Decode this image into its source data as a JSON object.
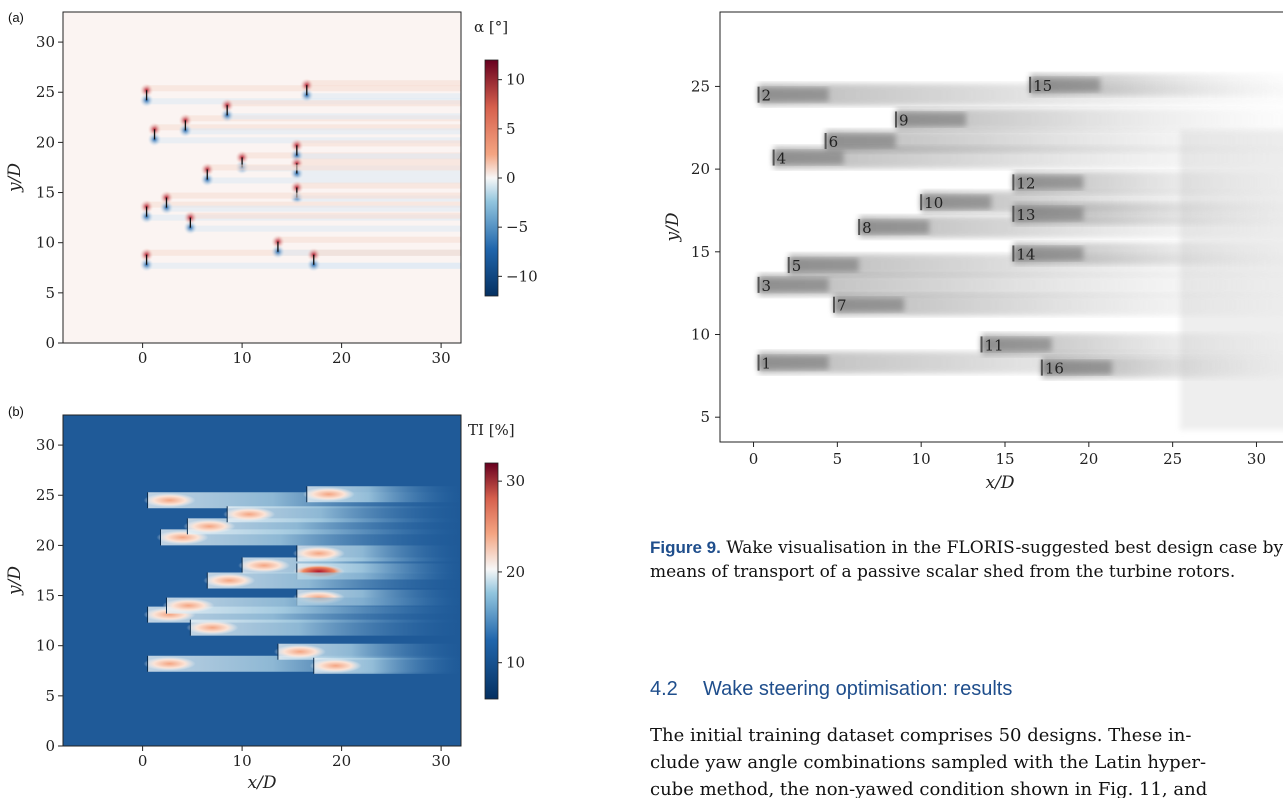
{
  "panel_a": {
    "letter": "(a)",
    "colorbar_label": "α [°]",
    "colorbar_ticks": [
      "10",
      "5",
      "0",
      "−5",
      "−10"
    ],
    "x_ticks": [
      "0",
      "10",
      "20",
      "30"
    ],
    "y_ticks": [
      "0",
      "5",
      "10",
      "15",
      "20",
      "25",
      "30"
    ],
    "ylabel": "y/D"
  },
  "panel_b": {
    "letter": "(b)",
    "colorbar_label": "TI [%]",
    "colorbar_ticks": [
      "30",
      "20",
      "10"
    ],
    "x_ticks": [
      "0",
      "10",
      "20",
      "30"
    ],
    "y_ticks": [
      "0",
      "5",
      "10",
      "15",
      "20",
      "25",
      "30"
    ],
    "xlabel": "x/D",
    "ylabel": "y/D"
  },
  "panel_c": {
    "x_ticks": [
      "0",
      "5",
      "10",
      "15",
      "20",
      "25",
      "30"
    ],
    "y_ticks": [
      "5",
      "10",
      "15",
      "20",
      "25"
    ],
    "xlabel": "x/D",
    "ylabel": "y/D",
    "turbine_labels": [
      "1",
      "2",
      "3",
      "4",
      "5",
      "6",
      "7",
      "8",
      "9",
      "10",
      "11",
      "12",
      "13",
      "14",
      "15",
      "16"
    ]
  },
  "chart_data": [
    {
      "type": "heatmap",
      "title": "",
      "xlabel": "",
      "ylabel": "y/D",
      "xlim": [
        -8,
        32
      ],
      "ylim": [
        0,
        33
      ],
      "colorbar": {
        "label": "α [°]",
        "range": [
          -12,
          12
        ],
        "colormap": "RdBu_r"
      },
      "turbines": [
        {
          "x": 0.4,
          "y": 24.7
        },
        {
          "x": 1.2,
          "y": 20.8
        },
        {
          "x": 4.3,
          "y": 21.7
        },
        {
          "x": 8.5,
          "y": 23.2
        },
        {
          "x": 16.5,
          "y": 25.2
        },
        {
          "x": 10.0,
          "y": 18.0
        },
        {
          "x": 15.5,
          "y": 19.2
        },
        {
          "x": 15.5,
          "y": 17.4
        },
        {
          "x": 6.5,
          "y": 16.8
        },
        {
          "x": 15.5,
          "y": 15.0
        },
        {
          "x": 0.4,
          "y": 13.1
        },
        {
          "x": 2.4,
          "y": 14.0
        },
        {
          "x": 4.8,
          "y": 12.0
        },
        {
          "x": 0.4,
          "y": 8.3
        },
        {
          "x": 13.6,
          "y": 9.6
        },
        {
          "x": 17.2,
          "y": 8.3
        }
      ]
    },
    {
      "type": "heatmap",
      "title": "",
      "xlabel": "x/D",
      "ylabel": "y/D",
      "xlim": [
        -8,
        32
      ],
      "ylim": [
        0,
        33
      ],
      "colorbar": {
        "label": "TI [%]",
        "range": [
          6,
          32
        ],
        "colormap": "RdBu_r"
      },
      "wakes": [
        {
          "x": 0.5,
          "y": 24.5
        },
        {
          "x": 1.8,
          "y": 20.8
        },
        {
          "x": 4.5,
          "y": 21.9
        },
        {
          "x": 8.5,
          "y": 23.1
        },
        {
          "x": 16.5,
          "y": 25.1
        },
        {
          "x": 10.0,
          "y": 18.0
        },
        {
          "x": 15.5,
          "y": 19.2
        },
        {
          "x": 15.5,
          "y": 17.4
        },
        {
          "x": 6.5,
          "y": 16.5
        },
        {
          "x": 15.5,
          "y": 14.8
        },
        {
          "x": 0.5,
          "y": 13.1
        },
        {
          "x": 2.4,
          "y": 14.0
        },
        {
          "x": 4.8,
          "y": 11.8
        },
        {
          "x": 0.5,
          "y": 8.2
        },
        {
          "x": 13.6,
          "y": 9.4
        },
        {
          "x": 17.2,
          "y": 8.0
        }
      ]
    },
    {
      "type": "heatmap",
      "title": "",
      "xlabel": "x/D",
      "ylabel": "y/D",
      "xlim": [
        -2,
        32
      ],
      "ylim": [
        3.5,
        29.5
      ],
      "turbines": [
        {
          "label": "1",
          "x": 0.3,
          "y": 8.3
        },
        {
          "label": "2",
          "x": 0.3,
          "y": 24.5
        },
        {
          "label": "3",
          "x": 0.3,
          "y": 13.0
        },
        {
          "label": "4",
          "x": 1.2,
          "y": 20.7
        },
        {
          "label": "5",
          "x": 2.1,
          "y": 14.2
        },
        {
          "label": "6",
          "x": 4.3,
          "y": 21.7
        },
        {
          "label": "7",
          "x": 4.8,
          "y": 11.8
        },
        {
          "label": "8",
          "x": 6.3,
          "y": 16.5
        },
        {
          "label": "9",
          "x": 8.5,
          "y": 23.0
        },
        {
          "label": "10",
          "x": 10.0,
          "y": 18.0
        },
        {
          "label": "11",
          "x": 13.6,
          "y": 9.4
        },
        {
          "label": "12",
          "x": 15.5,
          "y": 19.2
        },
        {
          "label": "13",
          "x": 15.5,
          "y": 17.3
        },
        {
          "label": "14",
          "x": 15.5,
          "y": 14.9
        },
        {
          "label": "15",
          "x": 16.5,
          "y": 25.1
        },
        {
          "label": "16",
          "x": 17.2,
          "y": 8.0
        }
      ]
    }
  ],
  "caption": {
    "label": "Figure 9.",
    "text": "Wake visualisation in the FLORIS-suggested best design case by means of transport of a passive scalar shed from the turbine rotors."
  },
  "section": {
    "number": "4.2",
    "title": "Wake steering optimisation: results"
  },
  "paragraph": {
    "lines": [
      "The initial training dataset comprises 50 designs. These in-",
      "clude yaw angle combinations sampled with the Latin hyper-",
      "cube method, the non-yawed condition shown in Fig. 11, and"
    ]
  }
}
